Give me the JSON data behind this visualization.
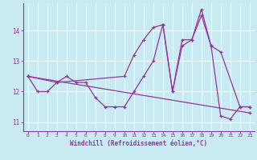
{
  "xlabel": "Windchill (Refroidissement éolien,°C)",
  "ylabel": "",
  "bg_color": "#c8eaf0",
  "line_color": "#993399",
  "grid_color": "#ffffff",
  "xlim": [
    -0.5,
    23.5
  ],
  "ylim": [
    10.7,
    14.9
  ],
  "xticks": [
    0,
    1,
    2,
    3,
    4,
    5,
    6,
    7,
    8,
    9,
    10,
    11,
    12,
    13,
    14,
    15,
    16,
    17,
    18,
    19,
    20,
    21,
    22,
    23
  ],
  "yticks": [
    11,
    12,
    13,
    14
  ],
  "line1_x": [
    0,
    1,
    2,
    3,
    4,
    5,
    6,
    7,
    8,
    9,
    10,
    11,
    12,
    13,
    14,
    15,
    16,
    17,
    18,
    19,
    20,
    21,
    22,
    23
  ],
  "line1_y": [
    12.5,
    12.0,
    12.0,
    12.3,
    12.5,
    12.3,
    12.3,
    11.8,
    11.5,
    11.5,
    11.5,
    12.0,
    12.5,
    13.0,
    14.2,
    12.0,
    13.5,
    13.7,
    14.5,
    13.5,
    11.2,
    11.1,
    11.5,
    11.5
  ],
  "line2_x": [
    0,
    3,
    10,
    11,
    12,
    13,
    14,
    15,
    16,
    17,
    18,
    19,
    20,
    22,
    23
  ],
  "line2_y": [
    12.5,
    12.3,
    12.5,
    13.2,
    13.7,
    14.1,
    14.2,
    12.0,
    13.7,
    13.7,
    14.7,
    13.5,
    13.3,
    11.5,
    11.5
  ],
  "line3_x": [
    0,
    23
  ],
  "line3_y": [
    12.5,
    11.3
  ]
}
